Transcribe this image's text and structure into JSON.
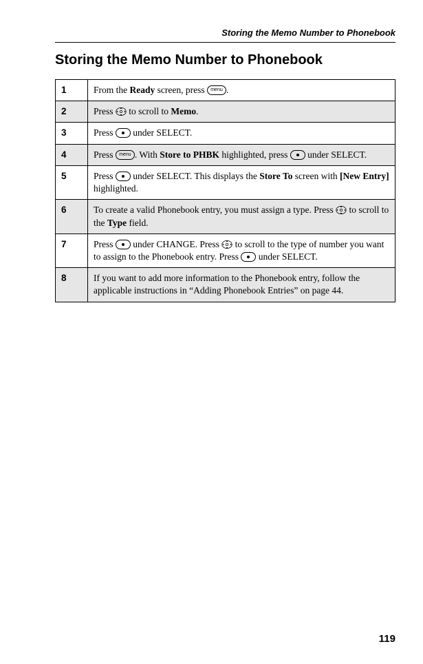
{
  "running_header": "Storing the Memo Number to Phonebook",
  "page_title": "Storing the Memo Number to Phonebook",
  "page_number": "119",
  "icons": {
    "menu_label": "menu"
  },
  "steps": [
    {
      "num": "1",
      "parts": [
        {
          "t": "text",
          "v": "From the "
        },
        {
          "t": "bold",
          "v": "Ready"
        },
        {
          "t": "text",
          "v": " screen, press "
        },
        {
          "t": "menu"
        },
        {
          "t": "text",
          "v": "."
        }
      ],
      "shaded": false
    },
    {
      "num": "2",
      "parts": [
        {
          "t": "text",
          "v": "Press "
        },
        {
          "t": "nav"
        },
        {
          "t": "text",
          "v": " to scroll to "
        },
        {
          "t": "bold",
          "v": "Memo"
        },
        {
          "t": "text",
          "v": "."
        }
      ],
      "shaded": true
    },
    {
      "num": "3",
      "parts": [
        {
          "t": "text",
          "v": "Press "
        },
        {
          "t": "dot"
        },
        {
          "t": "text",
          "v": " under SELECT."
        }
      ],
      "shaded": false
    },
    {
      "num": "4",
      "parts": [
        {
          "t": "text",
          "v": "Press "
        },
        {
          "t": "menu"
        },
        {
          "t": "text",
          "v": ". With "
        },
        {
          "t": "bold",
          "v": "Store to PHBK"
        },
        {
          "t": "text",
          "v": " highlighted, press "
        },
        {
          "t": "dot"
        },
        {
          "t": "text",
          "v": " under SELECT."
        }
      ],
      "shaded": true
    },
    {
      "num": "5",
      "parts": [
        {
          "t": "text",
          "v": "Press "
        },
        {
          "t": "dot"
        },
        {
          "t": "text",
          "v": " under SELECT. This displays the "
        },
        {
          "t": "bold",
          "v": "Store To"
        },
        {
          "t": "text",
          "v": " screen with "
        },
        {
          "t": "bold",
          "v": "[New Entry]"
        },
        {
          "t": "text",
          "v": " highlighted."
        }
      ],
      "shaded": false
    },
    {
      "num": "6",
      "parts": [
        {
          "t": "text",
          "v": "To create a valid Phonebook entry, you must assign a type. Press "
        },
        {
          "t": "nav"
        },
        {
          "t": "text",
          "v": " to scroll to the "
        },
        {
          "t": "bold",
          "v": "Type"
        },
        {
          "t": "text",
          "v": " field."
        }
      ],
      "shaded": true
    },
    {
      "num": "7",
      "parts": [
        {
          "t": "text",
          "v": "Press "
        },
        {
          "t": "dot"
        },
        {
          "t": "text",
          "v": " under CHANGE. Press "
        },
        {
          "t": "nav"
        },
        {
          "t": "text",
          "v": " to scroll to the type of number you want to assign to the Phonebook entry. Press "
        },
        {
          "t": "dot"
        },
        {
          "t": "text",
          "v": " under SELECT."
        }
      ],
      "shaded": false
    },
    {
      "num": "8",
      "parts": [
        {
          "t": "text",
          "v": "If you want to add more information to the Phonebook entry, follow the applicable instructions in “Adding Phonebook Entries” on page 44."
        }
      ],
      "shaded": true
    }
  ]
}
